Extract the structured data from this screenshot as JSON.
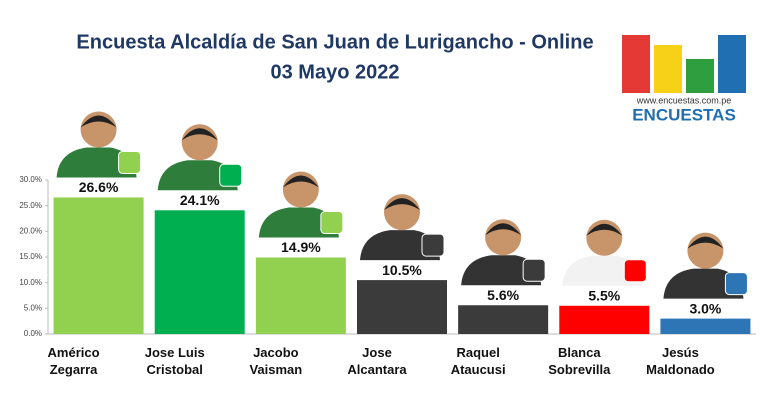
{
  "chart_data": {
    "type": "bar",
    "title": "Encuesta Alcaldía de San Juan de Lurigancho - Online",
    "subtitle": "03 Mayo 2022",
    "logo_url": "www.encuestas.com.pe",
    "logo_name": "ENCUESTAS",
    "categories": [
      "Américo\nZegarra",
      "Jose Luis\nCristobal",
      "Jacobo\nVaisman",
      "Jose\nAlcantara",
      "Raquel\nAtaucusi",
      "Blanca\nSobrevilla",
      "Jesús\nMaldonado"
    ],
    "values": [
      26.6,
      24.1,
      14.9,
      10.5,
      5.6,
      5.5,
      3.0
    ],
    "value_labels": [
      "26.6%",
      "24.1%",
      "14.9%",
      "10.5%",
      "5.6%",
      "5.5%",
      "3.0%"
    ],
    "colors": [
      "#92d050",
      "#00b050",
      "#92d050",
      "#3b3b3b",
      "#3b3b3b",
      "#ff0000",
      "#2e75b6"
    ],
    "ylim": [
      0,
      30
    ],
    "yticks": [
      {
        "value": 0,
        "label": "0.0%"
      },
      {
        "value": 5,
        "label": "5.0%"
      },
      {
        "value": 10,
        "label": "10.0%"
      },
      {
        "value": 15,
        "label": "15.0%"
      },
      {
        "value": 20,
        "label": "20.0%"
      },
      {
        "value": 25,
        "label": "25.0%"
      },
      {
        "value": 30,
        "label": "30.0%"
      }
    ],
    "grid": false
  }
}
